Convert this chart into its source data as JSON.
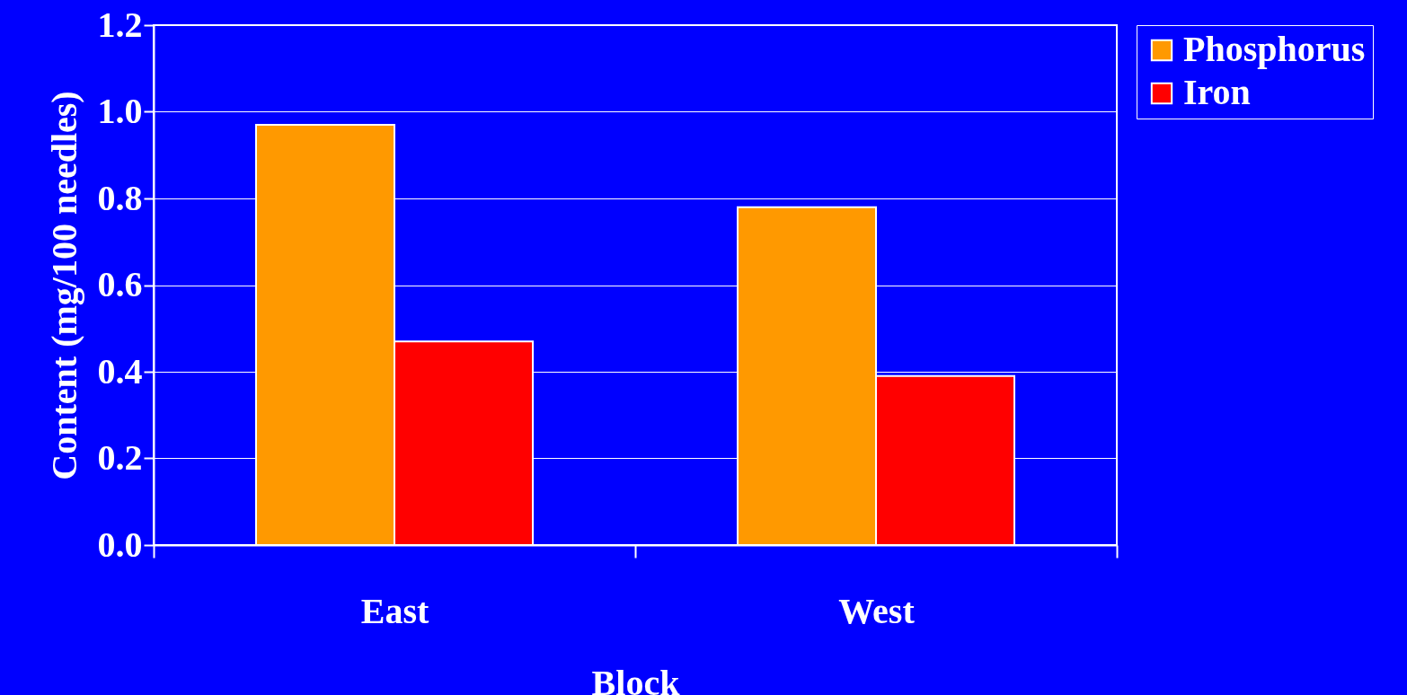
{
  "chart_data": {
    "type": "bar",
    "xlabel": "Block",
    "ylabel": "Content (mg/100 needles)",
    "categories": [
      "East",
      "West"
    ],
    "series": [
      {
        "name": "Phosphorus",
        "color": "#ff9900",
        "values": [
          0.97,
          0.78
        ]
      },
      {
        "name": "Iron",
        "color": "#ff0000",
        "values": [
          0.47,
          0.39
        ]
      }
    ],
    "ylim": [
      0,
      1.2
    ],
    "yticks": [
      {
        "value": 0,
        "label": "0.0"
      },
      {
        "value": 0.2,
        "label": "0.2"
      },
      {
        "value": 0.4,
        "label": "0.4"
      },
      {
        "value": 0.6,
        "label": "0.6"
      },
      {
        "value": 0.8,
        "label": "0.8"
      },
      {
        "value": 1,
        "label": "1.0"
      },
      {
        "value": 1.2,
        "label": "1.2"
      }
    ],
    "grid": "y",
    "legend": "right"
  }
}
